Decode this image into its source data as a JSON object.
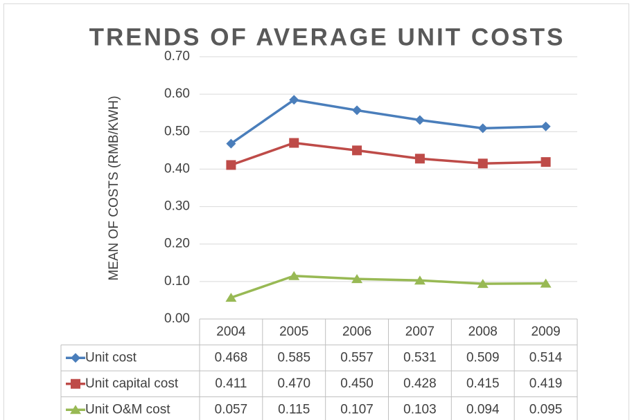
{
  "chart_data": {
    "type": "line",
    "title": "TRENDS OF AVERAGE UNIT COSTS",
    "y_label": "MEAN OF COSTS (RMB/KWH)",
    "categories": [
      "2004",
      "2005",
      "2006",
      "2007",
      "2008",
      "2009"
    ],
    "series": [
      {
        "name": "Unit cost",
        "color": "#4a7ebb",
        "marker": "diamond",
        "values": [
          0.468,
          0.585,
          0.557,
          0.531,
          0.509,
          0.514
        ],
        "value_labels": [
          "0.468",
          "0.585",
          "0.557",
          "0.531",
          "0.509",
          "0.514"
        ]
      },
      {
        "name": "Unit capital cost",
        "color": "#be4b48",
        "marker": "square",
        "values": [
          0.411,
          0.47,
          0.45,
          0.428,
          0.415,
          0.419
        ],
        "value_labels": [
          "0.411",
          "0.470",
          "0.450",
          "0.428",
          "0.415",
          "0.419"
        ]
      },
      {
        "name": "Unit O&M cost",
        "color": "#98b954",
        "marker": "triangle",
        "values": [
          0.057,
          0.115,
          0.107,
          0.103,
          0.094,
          0.095
        ],
        "value_labels": [
          "0.057",
          "0.115",
          "0.107",
          "0.103",
          "0.094",
          "0.095"
        ]
      }
    ],
    "ylim": [
      0,
      0.7
    ],
    "yticks": [
      {
        "value": 0,
        "label": "0.00"
      },
      {
        "value": 0.1,
        "label": "0.10"
      },
      {
        "value": 0.2,
        "label": "0.20"
      },
      {
        "value": 0.3,
        "label": "0.30"
      },
      {
        "value": 0.4,
        "label": "0.40"
      },
      {
        "value": 0.5,
        "label": "0.50"
      },
      {
        "value": 0.6,
        "label": "0.60"
      },
      {
        "value": 0.7,
        "label": "0.70"
      }
    ],
    "grid": true,
    "data_table": true
  }
}
